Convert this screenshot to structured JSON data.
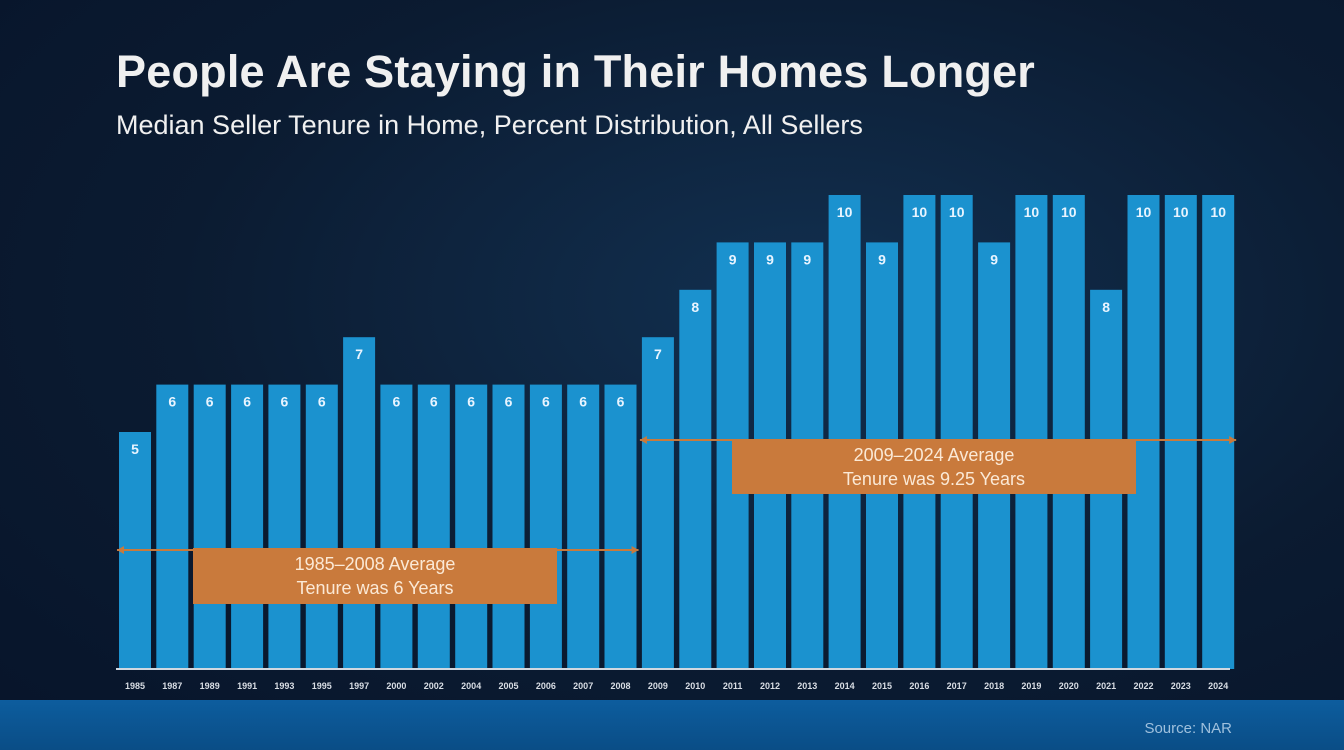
{
  "header": {
    "title": "People Are Staying in Their Homes Longer",
    "subtitle": "Median Seller Tenure in Home, Percent Distribution, All Sellers"
  },
  "colors": {
    "bar": "#1b92cf",
    "annotation_box": "#c97a3c",
    "annotation_line": "#c97a3c"
  },
  "annotations": {
    "left": {
      "line1": "1985–2008 Average",
      "line2": "Tenure was 6 Years"
    },
    "right": {
      "line1": "2009–2024 Average",
      "line2": "Tenure was 9.25 Years"
    }
  },
  "footer": {
    "source": "Source: NAR"
  },
  "chart_data": {
    "type": "bar",
    "categories": [
      "1985",
      "1987",
      "1989",
      "1991",
      "1993",
      "1995",
      "1997",
      "2000",
      "2002",
      "2004",
      "2005",
      "2006",
      "2007",
      "2008",
      "2009",
      "2010",
      "2011",
      "2012",
      "2013",
      "2014",
      "2015",
      "2016",
      "2017",
      "2018",
      "2019",
      "2020",
      "2021",
      "2022",
      "2023",
      "2024"
    ],
    "values": [
      5,
      6,
      6,
      6,
      6,
      6,
      7,
      6,
      6,
      6,
      6,
      6,
      6,
      6,
      7,
      8,
      9,
      9,
      9,
      10,
      9,
      10,
      10,
      9,
      10,
      10,
      8,
      10,
      10,
      10
    ],
    "title": "People Are Staying in Their Homes Longer",
    "subtitle": "Median Seller Tenure in Home, Percent Distribution, All Sellers",
    "ylim": [
      0,
      10
    ],
    "grid": false,
    "legend": "none",
    "reference_lines": [
      {
        "from": "1985",
        "to": "2008",
        "value": 6
      },
      {
        "from": "2009",
        "to": "2024",
        "value": 9.25
      }
    ]
  }
}
